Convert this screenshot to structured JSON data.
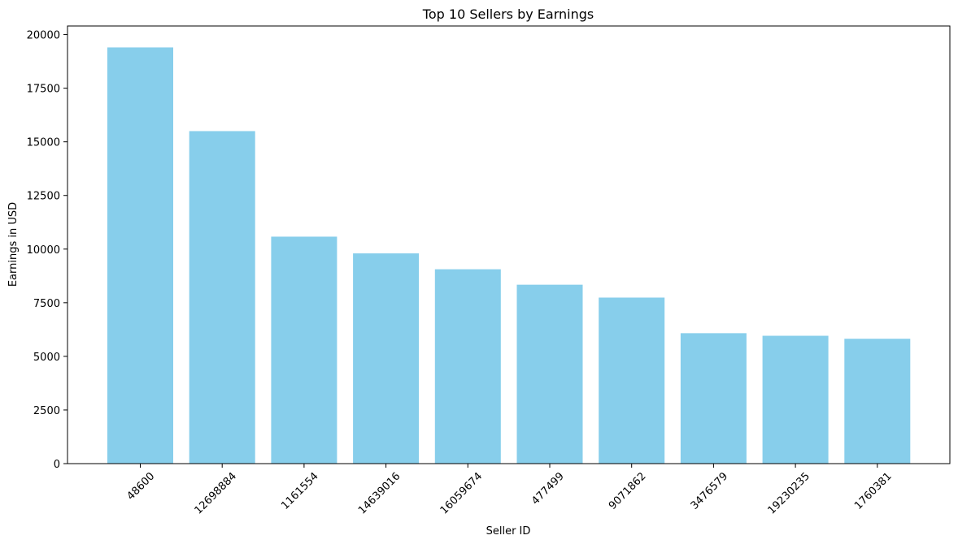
{
  "chart_data": {
    "type": "bar",
    "title": "Top 10 Sellers by Earnings",
    "xlabel": "Seller ID",
    "ylabel": "Earnings in USD",
    "categories": [
      "48600",
      "12698884",
      "1161554",
      "14639016",
      "16059674",
      "477499",
      "9071862",
      "3476579",
      "19230235",
      "1760381"
    ],
    "values": [
      19400,
      15500,
      10580,
      9800,
      9060,
      8340,
      7740,
      6080,
      5960,
      5820
    ],
    "ylim": [
      0,
      20400
    ],
    "yticks": [
      0,
      2500,
      5000,
      7500,
      10000,
      12500,
      15000,
      17500,
      20000
    ],
    "bar_color": "#87CEEB",
    "grid": false,
    "xtick_rotation": -45
  }
}
